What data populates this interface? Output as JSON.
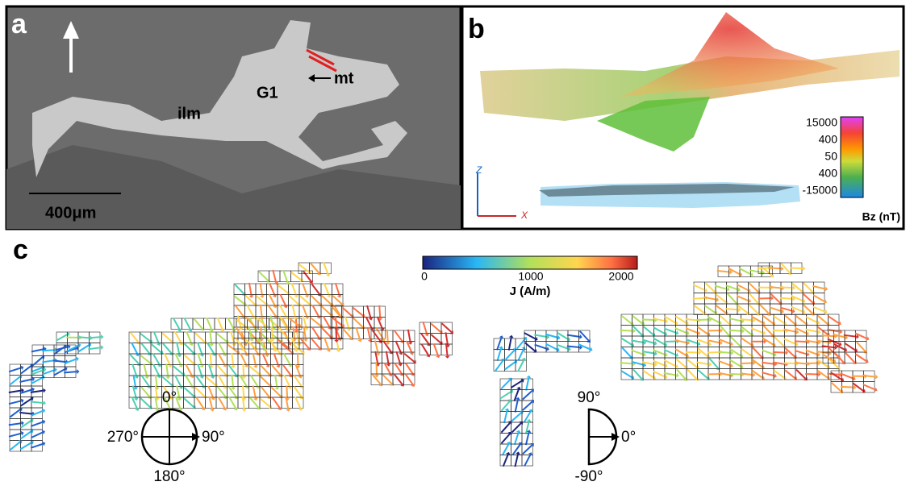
{
  "panel_a": {
    "label": "a",
    "texts": {
      "ilm": "ilm",
      "g1": "G1",
      "mt": "mt",
      "scale": "400μm"
    }
  },
  "panel_b": {
    "label": "b",
    "colorbar": {
      "ticks": [
        "15000",
        "400",
        "50",
        "400",
        "-15000"
      ],
      "title": "Bz (nT)"
    },
    "axes": {
      "z": "Z",
      "x": "X"
    }
  },
  "panel_c": {
    "label": "c",
    "colorbar": {
      "ticks": [
        "0",
        "1000",
        "2000"
      ],
      "title": "J (A/m)"
    },
    "compass_full": {
      "top": "0°",
      "right": "90°",
      "bottom": "180°",
      "left": "270°"
    },
    "compass_half": {
      "top": "90°",
      "right": "0°",
      "bottom": "-90°"
    }
  }
}
